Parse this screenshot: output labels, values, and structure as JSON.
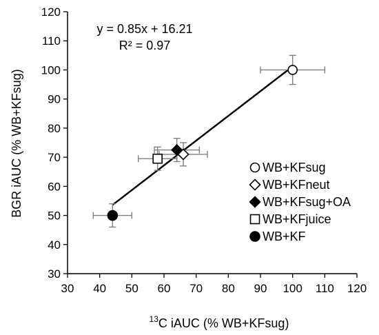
{
  "chart_data": {
    "type": "scatter",
    "xlabel": {
      "superscript": "13",
      "text": "C iAUC (% WB+KFsug)"
    },
    "ylabel": "BGR iAUC (% WB+KFsug)",
    "xlim": [
      30,
      120
    ],
    "ylim": [
      30,
      120
    ],
    "x_ticks": [
      "30",
      "40",
      "50",
      "60",
      "70",
      "80",
      "90",
      "100",
      "110",
      "120"
    ],
    "y_ticks": [
      "30",
      "40",
      "50",
      "60",
      "70",
      "80",
      "90",
      "100",
      "110",
      "120"
    ],
    "grid": false,
    "legend_position": "bottom-right",
    "series": [
      {
        "name": "WB+KFsug",
        "marker": "circle-open",
        "x": 100,
        "y": 100,
        "x_err": 10,
        "y_err": 5
      },
      {
        "name": "WB+KFneut",
        "marker": "diamond-open",
        "x": 66,
        "y": 71,
        "x_err": 7.5,
        "y_err": 4
      },
      {
        "name": "WB+KFsug+OA",
        "marker": "diamond-filled",
        "x": 64,
        "y": 72.5,
        "x_err": 7,
        "y_err": 4
      },
      {
        "name": "WB+KFjuice",
        "marker": "square-open",
        "x": 58,
        "y": 69.5,
        "x_err": 6,
        "y_err": 4
      },
      {
        "name": "WB+KF",
        "marker": "circle-filled",
        "x": 44,
        "y": 50,
        "x_err": 6,
        "y_err": 4
      }
    ],
    "trendline": {
      "equation": "y = 0.85x + 16.21",
      "r_squared": "R² = 0.97",
      "x_start": 44,
      "x_end": 100,
      "slope": 0.85,
      "intercept": 16.21
    }
  },
  "colors": {
    "axis": "#000000",
    "marker": "#000000",
    "error_bar": "#7f7f7f",
    "fill_open": "#ffffff"
  }
}
